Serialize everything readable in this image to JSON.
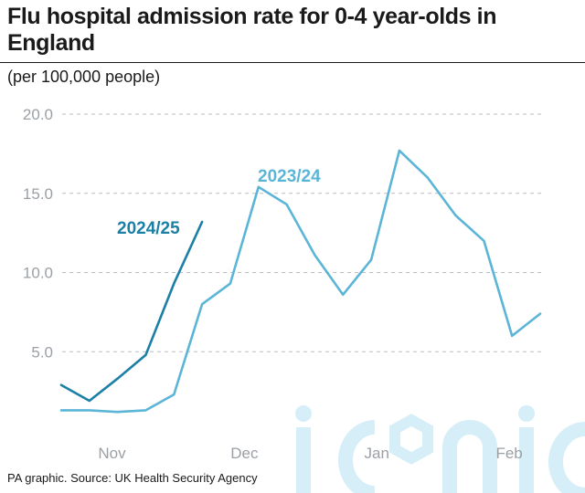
{
  "header": {
    "title": "Flu hospital admission rate for 0-4 year-olds in England",
    "subtitle": "(per 100,000 people)"
  },
  "footer": {
    "source": "PA graphic. Source: UK Health Security Agency"
  },
  "watermark": {
    "text": "iconic",
    "color": "#d6eef7"
  },
  "chart_data": {
    "type": "line",
    "title": "Flu hospital admission rate for 0-4 year-olds in England",
    "ylabel": "(per 100,000 people)",
    "xlabel": "",
    "ylim": [
      0,
      20
    ],
    "xlim": [
      0,
      18
    ],
    "yticks": [
      5,
      10,
      15,
      20
    ],
    "ytick_labels": [
      "5.0",
      "10.0",
      "15.0",
      "20.0"
    ],
    "xticks": [
      {
        "label": "Nov",
        "x": 1.8
      },
      {
        "label": "Dec",
        "x": 6.5
      },
      {
        "label": "Jan",
        "x": 11.2
      },
      {
        "label": "Feb",
        "x": 15.9
      }
    ],
    "grid": true,
    "series": [
      {
        "name": "2023/24",
        "color": "#5bb5d6",
        "x": [
          0,
          1,
          2,
          3,
          4,
          5,
          6,
          7,
          8,
          9,
          10,
          11,
          12,
          13,
          14,
          15,
          16,
          17
        ],
        "values": [
          1.3,
          1.3,
          1.2,
          1.3,
          2.3,
          8.0,
          9.3,
          15.4,
          14.3,
          11.1,
          8.6,
          10.8,
          17.7,
          16.0,
          13.6,
          12.0,
          6.0,
          7.4
        ]
      },
      {
        "name": "2024/25",
        "color": "#1b7fa6",
        "x": [
          0,
          1,
          2,
          3,
          4,
          5
        ],
        "values": [
          2.9,
          1.9,
          3.3,
          4.8,
          9.3,
          13.2
        ]
      }
    ]
  }
}
